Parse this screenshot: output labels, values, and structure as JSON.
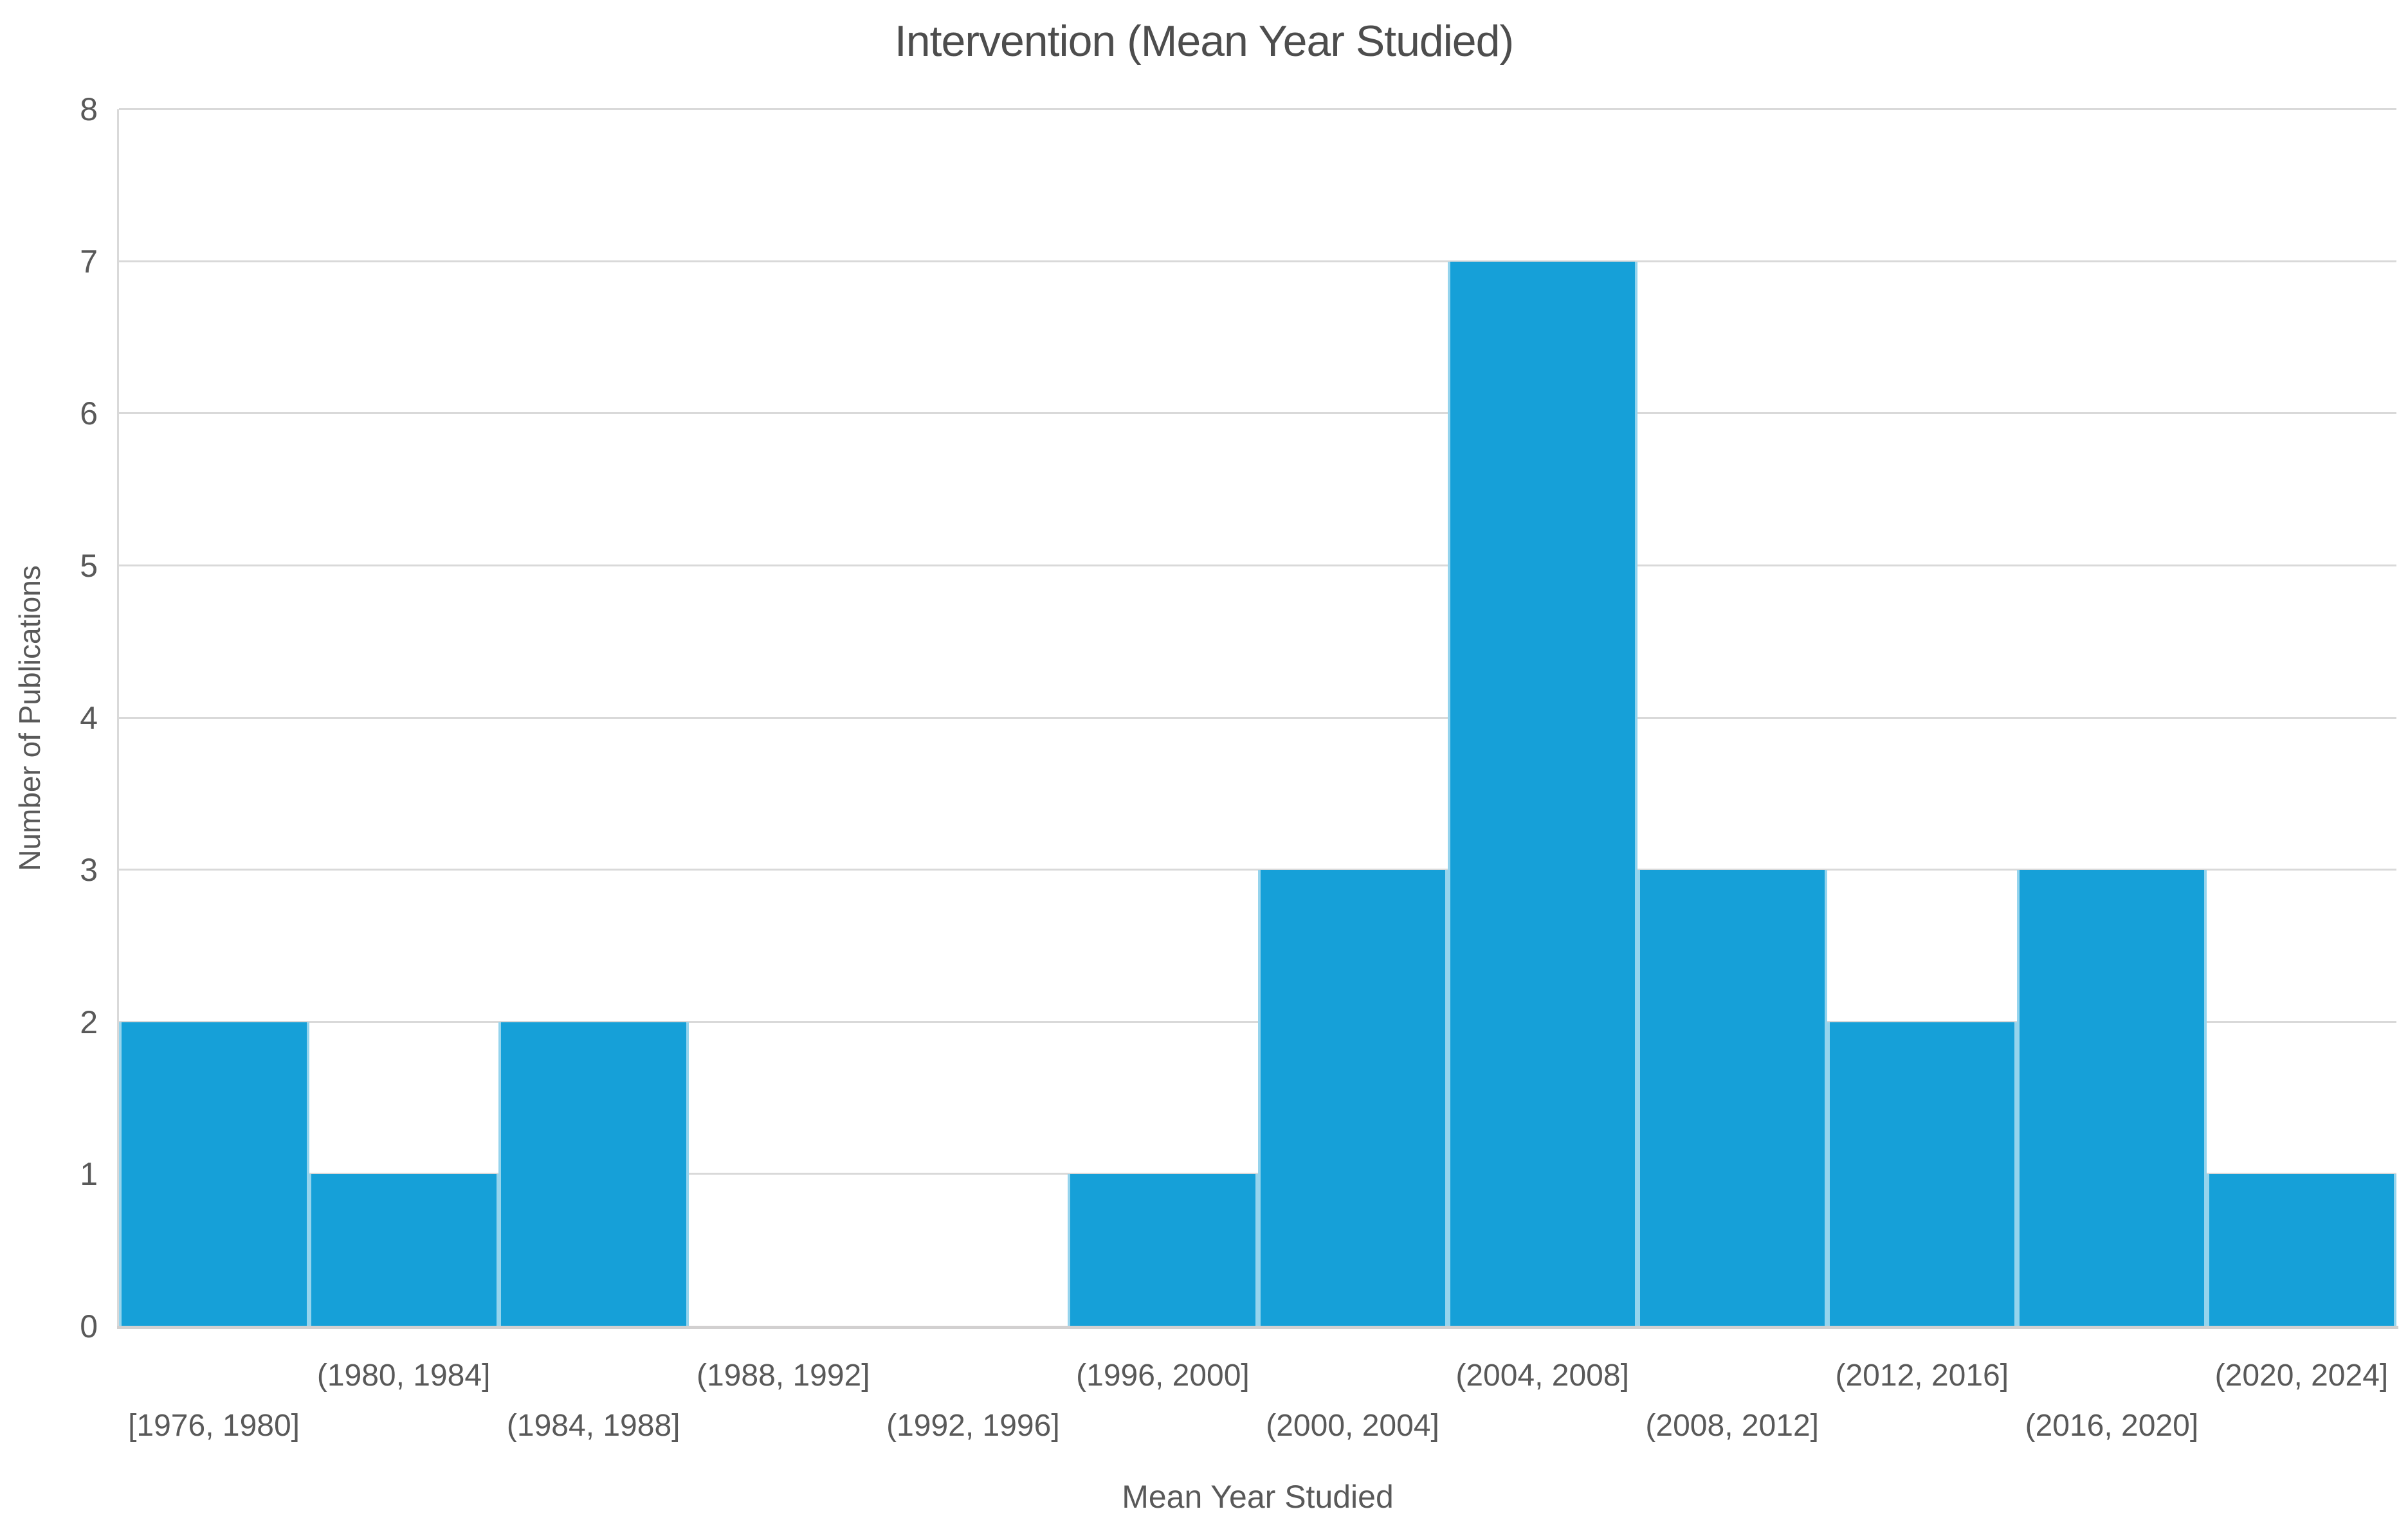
{
  "figure": {
    "title": "Intervention (Mean Year Studied)"
  },
  "chart_data": {
    "type": "bar",
    "subtype": "histogram",
    "title": "Intervention (Mean Year Studied)",
    "xlabel": "Mean Year Studied",
    "ylabel": "Number of Publications",
    "categories": [
      "[1976, 1980]",
      "(1980, 1984]",
      "(1984, 1988]",
      "(1988, 1992]",
      "(1992, 1996]",
      "(1996, 2000]",
      "(2000, 2004]",
      "(2004, 2008]",
      "(2008, 2012]",
      "(2012, 2016]",
      "(2016, 2020]",
      "(2020, 2024]"
    ],
    "values": [
      2,
      1,
      2,
      0,
      0,
      1,
      3,
      7,
      3,
      2,
      3,
      1
    ],
    "ylim": [
      0,
      8
    ],
    "yticks": [
      0,
      1,
      2,
      3,
      4,
      5,
      6,
      7,
      8
    ],
    "grid": "horizontal",
    "legend_position": "none",
    "bar_gap": 0,
    "x_tick_label_layout": "staggered-two-rows"
  },
  "colors": {
    "bar_fill": "#16A0D8",
    "bar_separator": "#A5DAF0",
    "gridline": "#D9D9D9",
    "axis_line": "#D2D0D0",
    "label_text": "#595959",
    "title_text": "#4D4D4D",
    "background": "#FFFFFF"
  }
}
